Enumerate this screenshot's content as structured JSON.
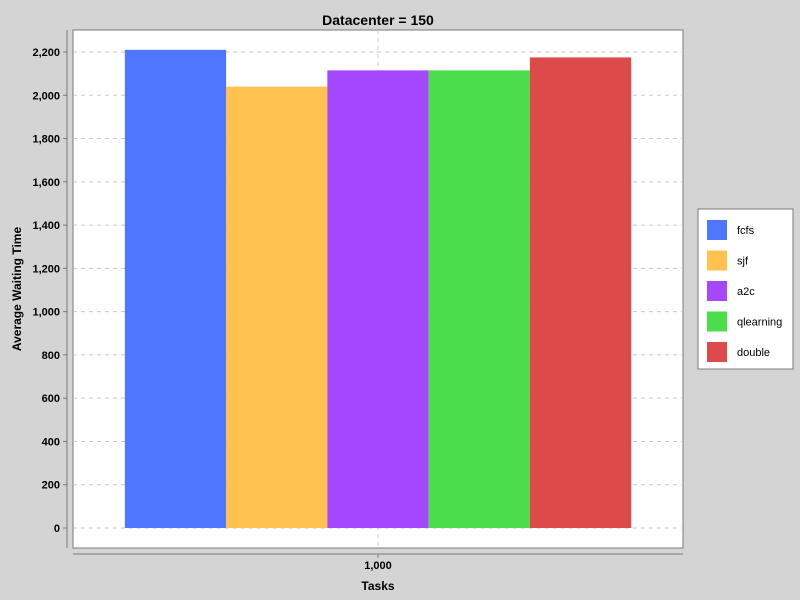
{
  "chart_data": {
    "type": "bar",
    "title": "Datacenter = 150",
    "xlabel": "Tasks",
    "ylabel": "Average Waiting Time",
    "categories": [
      "1,000"
    ],
    "series": [
      {
        "name": "fcfs",
        "color": "#4f76ff",
        "values": [
          2210
        ]
      },
      {
        "name": "sjf",
        "color": "#ffc24e",
        "values": [
          2040
        ]
      },
      {
        "name": "a2c",
        "color": "#a447ff",
        "values": [
          2115
        ]
      },
      {
        "name": "qlearning",
        "color": "#4bdd4b",
        "values": [
          2115
        ]
      },
      {
        "name": "double",
        "color": "#dd4a4a",
        "values": [
          2175
        ]
      }
    ],
    "ylim": [
      0,
      2200
    ],
    "yticks": [
      "0",
      "200",
      "400",
      "600",
      "800",
      "1,000",
      "1,200",
      "1,400",
      "1,600",
      "1,800",
      "2,000",
      "2,200"
    ],
    "grid": true,
    "legend_position": "right"
  }
}
